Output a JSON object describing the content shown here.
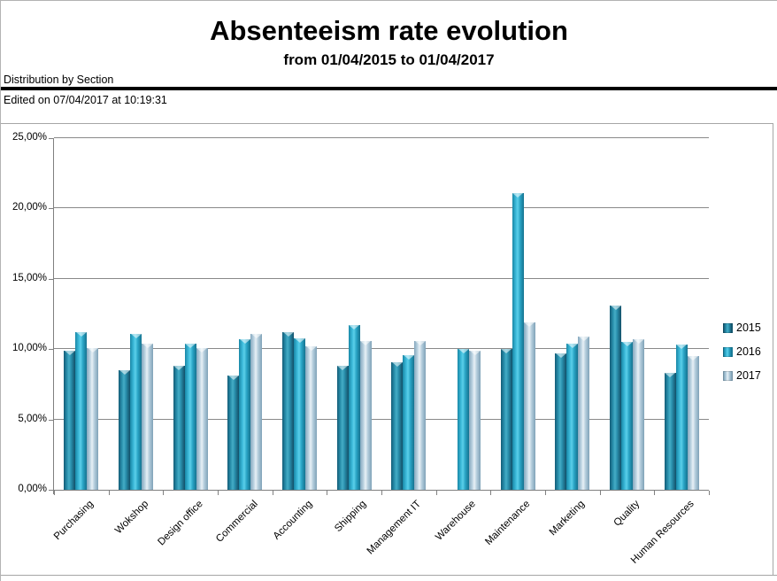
{
  "header": {
    "title": "Absenteeism rate evolution",
    "subtitle": "from 01/04/2015 to 01/04/2017",
    "section_label": "Distribution by Section",
    "edited_note": "Edited on 07/04/2017 at 10:19:31"
  },
  "chart_data": {
    "type": "bar",
    "title": "Absenteeism rate evolution",
    "subtitle": "from 01/04/2015 to 01/04/2017",
    "categories": [
      "Purchasing",
      "Wokshop",
      "Design office",
      "Commercial",
      "Accounting",
      "Shipping",
      "Management IT",
      "Warehouse",
      "Maintenance",
      "Marketing",
      "Quality",
      "Human Resources"
    ],
    "series": [
      {
        "name": "2015",
        "color": "#1f86a5",
        "values": [
          9.9,
          8.5,
          8.8,
          8.1,
          11.2,
          8.8,
          9.1,
          null,
          10.0,
          9.7,
          13.1,
          8.3
        ]
      },
      {
        "name": "2016",
        "color": "#35b2d3",
        "values": [
          11.2,
          11.1,
          10.4,
          10.7,
          10.8,
          11.7,
          9.6,
          10.0,
          21.1,
          10.4,
          10.5,
          10.3
        ]
      },
      {
        "name": "2017",
        "color": "#bad3e1",
        "values": [
          10.1,
          10.4,
          10.1,
          11.1,
          10.2,
          10.6,
          10.6,
          9.9,
          11.9,
          10.9,
          10.7,
          9.5
        ]
      }
    ],
    "xlabel": "",
    "ylabel": "",
    "ylim": [
      0,
      25
    ],
    "ytick_step": 5,
    "ytick_labels": [
      "0,00%",
      "5,00%",
      "10,00%",
      "15,00%",
      "20,00%",
      "25,00%"
    ],
    "grid": true,
    "legend_position": "right",
    "legend_entries": [
      "2015",
      "2016",
      "2017"
    ],
    "axis_color": "#808080",
    "gridline_color": "#898989"
  }
}
